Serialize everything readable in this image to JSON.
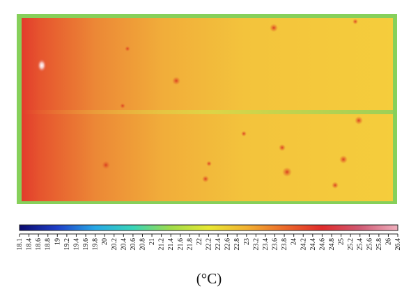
{
  "image": {
    "subject": "thermal-image-of-panel",
    "colors": {
      "border": "#7fcf5a",
      "hot_edge": "#e03e2c",
      "warm": "#ee8a3c",
      "body": "#f2c23a",
      "cool_seam": "#a8d85a"
    }
  },
  "colorbar": {
    "min": 18.1,
    "max": 26.4,
    "tick_labels": [
      "18.1",
      "18.4",
      "18.6",
      "18.8",
      "19",
      "19.2",
      "19.4",
      "19.6",
      "19.8",
      "20",
      "20.2",
      "20.4",
      "20.6",
      "20.8",
      "21",
      "21.2",
      "21.4",
      "21.6",
      "21.8",
      "22",
      "22.2",
      "22.4",
      "22.6",
      "22.8",
      "23",
      "23.2",
      "23.4",
      "23.6",
      "23.8",
      "24",
      "24.2",
      "24.4",
      "24.6",
      "24.8",
      "25",
      "25.2",
      "25.4",
      "25.6",
      "25.8",
      "26",
      "26.4"
    ],
    "colors": [
      "#0a0a6e",
      "#1f3fc8",
      "#27a8e6",
      "#38d4b8",
      "#9fdc4a",
      "#e8e832",
      "#f2b231",
      "#ec6a2a",
      "#e02b2b",
      "#d05a74",
      "#f0b0be"
    ]
  },
  "unit_label": "(°C)"
}
